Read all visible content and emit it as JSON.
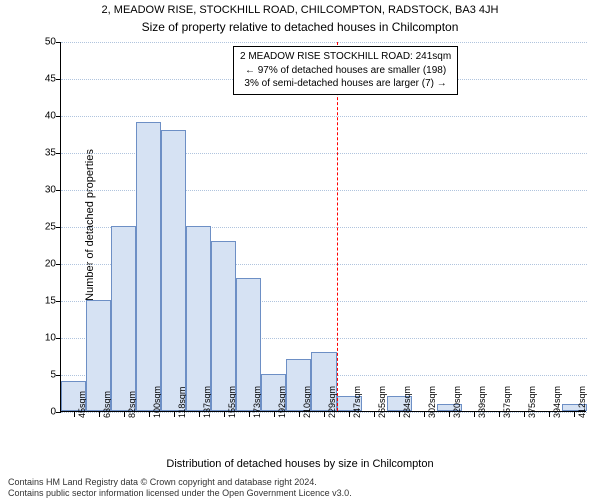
{
  "title_small": "2, MEADOW RISE, STOCKHILL ROAD, CHILCOMPTON, RADSTOCK, BA3 4JH",
  "title_main": "Size of property relative to detached houses in Chilcompton",
  "ylabel": "Number of detached properties",
  "xlabel": "Distribution of detached houses by size in Chilcompton",
  "chart": {
    "type": "histogram",
    "ylim": [
      0,
      50
    ],
    "ytick_step": 5,
    "grid_color": "#b0c4de",
    "bar_fill": "#d6e2f3",
    "bar_border": "#6d8fc5",
    "refline_color": "#ff0000",
    "refline_x_index": 11,
    "bins": [
      {
        "label": "45sqm",
        "value": 4
      },
      {
        "label": "63sqm",
        "value": 15
      },
      {
        "label": "82sqm",
        "value": 25
      },
      {
        "label": "100sqm",
        "value": 39
      },
      {
        "label": "118sqm",
        "value": 38
      },
      {
        "label": "137sqm",
        "value": 25
      },
      {
        "label": "155sqm",
        "value": 23
      },
      {
        "label": "173sqm",
        "value": 18
      },
      {
        "label": "192sqm",
        "value": 5
      },
      {
        "label": "210sqm",
        "value": 7
      },
      {
        "label": "229sqm",
        "value": 8
      },
      {
        "label": "247sqm",
        "value": 2
      },
      {
        "label": "265sqm",
        "value": 0
      },
      {
        "label": "284sqm",
        "value": 2
      },
      {
        "label": "302sqm",
        "value": 0
      },
      {
        "label": "320sqm",
        "value": 1
      },
      {
        "label": "339sqm",
        "value": 0
      },
      {
        "label": "357sqm",
        "value": 0
      },
      {
        "label": "375sqm",
        "value": 0
      },
      {
        "label": "394sqm",
        "value": 0
      },
      {
        "label": "412sqm",
        "value": 1
      }
    ]
  },
  "annotation": {
    "line1": "2 MEADOW RISE STOCKHILL ROAD: 241sqm",
    "line2": "← 97% of detached houses are smaller (198)",
    "line3": "3% of semi-detached houses are larger (7) →"
  },
  "footer": {
    "line1": "Contains HM Land Registry data © Crown copyright and database right 2024.",
    "line2": "Contains public sector information licensed under the Open Government Licence v3.0."
  }
}
